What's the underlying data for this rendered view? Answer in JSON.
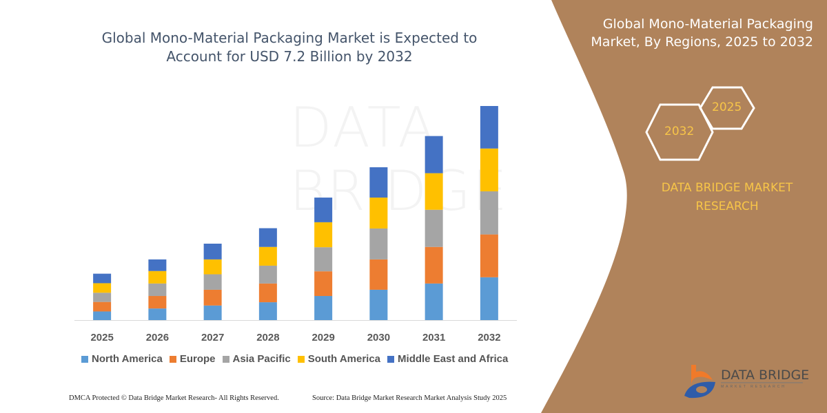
{
  "chart_data": {
    "type": "bar",
    "stacked": true,
    "title": "Global Mono-Material Packaging Market is Expected to Account for USD 7.2 Billion by 2032",
    "categories": [
      "2025",
      "2026",
      "2027",
      "2028",
      "2029",
      "2030",
      "2031",
      "2032"
    ],
    "series": [
      {
        "name": "North America",
        "color": "#5b9bd5",
        "values": [
          0.29,
          0.39,
          0.49,
          0.6,
          0.81,
          1.02,
          1.23,
          1.44
        ]
      },
      {
        "name": "Europe",
        "color": "#ed7d31",
        "values": [
          0.32,
          0.42,
          0.53,
          0.63,
          0.83,
          1.02,
          1.23,
          1.44
        ]
      },
      {
        "name": "Asia Pacific",
        "color": "#a5a5a5",
        "values": [
          0.31,
          0.42,
          0.52,
          0.6,
          0.81,
          1.04,
          1.25,
          1.45
        ]
      },
      {
        "name": "South America",
        "color": "#ffc000",
        "values": [
          0.32,
          0.42,
          0.5,
          0.63,
          0.84,
          1.04,
          1.23,
          1.44
        ]
      },
      {
        "name": "Middle East and Africa",
        "color": "#4472c4",
        "values": [
          0.32,
          0.39,
          0.53,
          0.63,
          0.83,
          1.02,
          1.25,
          1.43
        ]
      }
    ],
    "ylim": [
      0,
      7.2
    ],
    "grid": false,
    "legend": "bottom",
    "xlabel": "",
    "ylabel": ""
  },
  "title_line1": "Global Mono-Material Packaging Market is Expected to",
  "title_line2": "Account for USD 7.2 Billion by 2032",
  "right_panel": {
    "title_line1": "Global Mono-Material Packaging",
    "title_line2": "Market, By Regions, 2025 to 2032",
    "hex_start": "2025",
    "hex_end": "2032",
    "brand_line1": "DATA BRIDGE MARKET",
    "brand_line2": "RESEARCH",
    "color": "#b0835b"
  },
  "footer": {
    "dmca": "DMCA Protected © Data Bridge Market Research-  All Rights Reserved.",
    "source": "Source: Data Bridge Market Research  Market Analysis Study 2025"
  },
  "logo": {
    "name": "DATA BRIDGE",
    "sub": "MARKET RESEARCH"
  },
  "watermark": "DATA BRIDGE"
}
